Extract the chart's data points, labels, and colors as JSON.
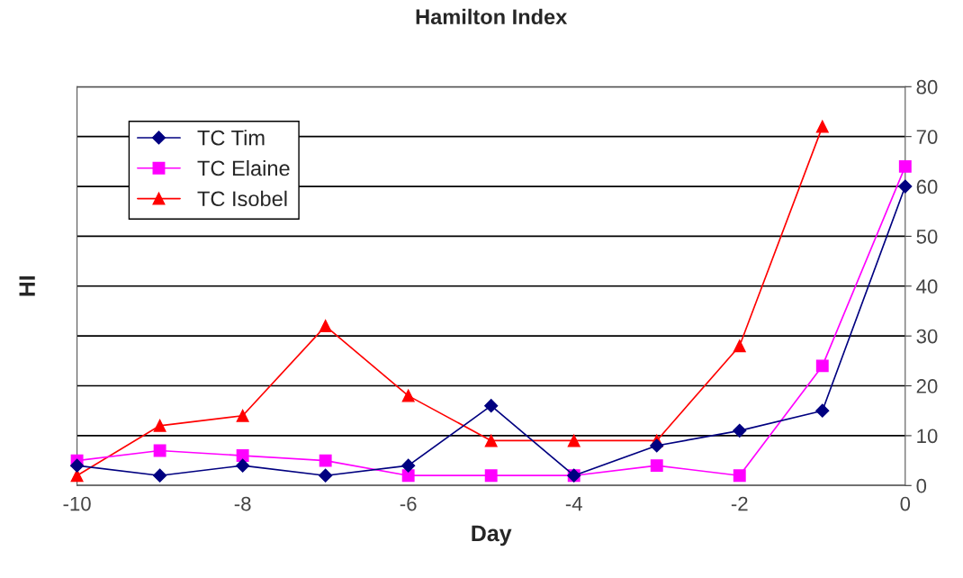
{
  "chart_data": {
    "type": "line",
    "title": "Hamilton Index",
    "xlabel": "Day",
    "ylabel": "HI",
    "x": [
      -10,
      -9,
      -8,
      -7,
      -6,
      -5,
      -4,
      -3,
      -2,
      -1,
      0
    ],
    "series": [
      {
        "name": "TC Tim",
        "color": "#000080",
        "marker": "diamond",
        "values": [
          4,
          2,
          4,
          2,
          4,
          16,
          2,
          8,
          11,
          15,
          60
        ]
      },
      {
        "name": "TC Elaine",
        "color": "#ff00ff",
        "marker": "square",
        "values": [
          5,
          7,
          6,
          5,
          2,
          2,
          2,
          4,
          2,
          24,
          64
        ]
      },
      {
        "name": "TC Isobel",
        "color": "#ff0000",
        "marker": "triangle",
        "values": [
          2,
          12,
          14,
          32,
          18,
          9,
          9,
          9,
          28,
          72,
          null
        ]
      }
    ],
    "xlim": [
      -10,
      0
    ],
    "xticks": [
      -10,
      -8,
      -6,
      -4,
      -2,
      0
    ],
    "ylim": [
      0,
      80
    ],
    "yticks": [
      0,
      10,
      20,
      30,
      40,
      50,
      60,
      70,
      80
    ],
    "grid": "y",
    "legend": "top left",
    "line_style": "solid"
  }
}
